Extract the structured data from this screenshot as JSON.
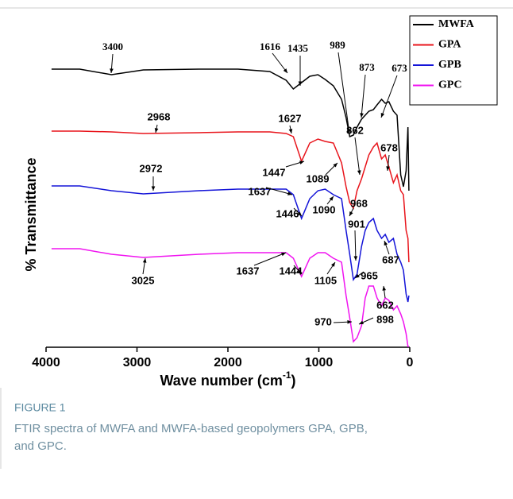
{
  "chart_data": {
    "type": "line",
    "y_label": "% Transmittance",
    "x_label": {
      "text": "Wave number (cm",
      "sup": "-1",
      "end": ")"
    },
    "xlim": [
      4000,
      0
    ],
    "xticks": [
      4000,
      3000,
      2000,
      1000,
      0
    ],
    "ylim": [
      0,
      85
    ],
    "x": [
      3940,
      3630,
      3280,
      2930,
      2320,
      1890,
      1540,
      1360,
      1280,
      1190,
      1100,
      1010,
      930,
      840,
      750,
      700,
      660,
      620,
      580,
      530,
      490,
      450,
      400,
      360,
      310,
      270,
      230,
      180,
      140,
      100,
      70,
      40,
      20,
      10
    ],
    "series": [
      {
        "name": "MWFA",
        "color": "#000000",
        "values": [
          70,
          70,
          68.6,
          69.8,
          70,
          70,
          69.4,
          67.2,
          65,
          66.6,
          68.2,
          68.6,
          67.4,
          65.8,
          62.4,
          57.8,
          53,
          53.4,
          55.4,
          57.4,
          58.4,
          59.4,
          59.8,
          61,
          62.4,
          61.4,
          61.8,
          59.4,
          58.4,
          43.4,
          40.4,
          44.4,
          55.4,
          39.4
        ]
      },
      {
        "name": "GPA",
        "color": "#e8141b",
        "values": [
          54.4,
          54.4,
          54.2,
          53.8,
          54,
          54.2,
          54.2,
          53.8,
          53,
          46.8,
          51.4,
          52.4,
          51.8,
          51.4,
          46.4,
          40.4,
          36.4,
          35,
          39.4,
          42.4,
          45.4,
          48.4,
          50.4,
          51.4,
          47.4,
          48.4,
          45.4,
          41.4,
          43.4,
          39.4,
          38.4,
          29.4,
          27.4,
          21.4
        ]
      },
      {
        "name": "GPB",
        "color": "#1414d8",
        "values": [
          40.6,
          40.6,
          39.4,
          38.6,
          39.4,
          39.8,
          39.8,
          39.8,
          38.4,
          32.4,
          37.4,
          39.4,
          39.8,
          38.4,
          37.4,
          29.4,
          23.4,
          17,
          18.4,
          25.4,
          29.4,
          31.4,
          32.4,
          29.4,
          27.4,
          28.4,
          26.4,
          27.4,
          23.4,
          21.4,
          19.4,
          13.4,
          11.4,
          13
        ]
      },
      {
        "name": "GPC",
        "color": "#f014f0",
        "values": [
          24.8,
          24.8,
          23.4,
          22.6,
          23.4,
          23.8,
          23.8,
          23.8,
          22.4,
          17.8,
          22.4,
          23.8,
          23.8,
          22.4,
          21.4,
          13,
          7.4,
          1.4,
          2.4,
          5.4,
          12.4,
          15.4,
          15.4,
          12.4,
          10.4,
          12.4,
          11.8,
          9.4,
          10.4,
          8.4,
          6.4,
          3.4,
          0.2,
          0.2
        ]
      }
    ],
    "annotations": [
      "3400",
      "1616",
      "1435",
      "989",
      "873",
      "673",
      "2968",
      "1627",
      "1447",
      "1089",
      "862",
      "678",
      "2972",
      "1637",
      "1446",
      "1090",
      "968",
      "901",
      "687",
      "3025",
      "1637",
      "1444",
      "1105",
      "965",
      "662",
      "898",
      "970"
    ]
  },
  "caption": {
    "label": "FIGURE 1",
    "lines": [
      "FTIR spectra of MWFA and MWFA-based geopolymers GPA, GPB,",
      "and GPC."
    ]
  }
}
